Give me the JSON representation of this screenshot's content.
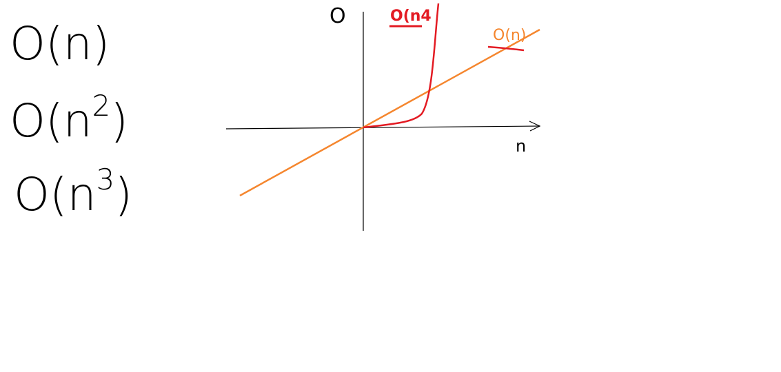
{
  "formulas": [
    {
      "base": "O(n)"
    },
    {
      "base": "O(n",
      "exponent": "2",
      "close": ")"
    },
    {
      "base": "O(n",
      "exponent": "3",
      "close": ")"
    }
  ],
  "graph": {
    "y_axis_label": "O",
    "x_axis_label": "n",
    "curves": [
      {
        "label": "O(n4",
        "color": "#e31b23"
      },
      {
        "label": "O(n)",
        "color": "#f5862e"
      }
    ]
  }
}
